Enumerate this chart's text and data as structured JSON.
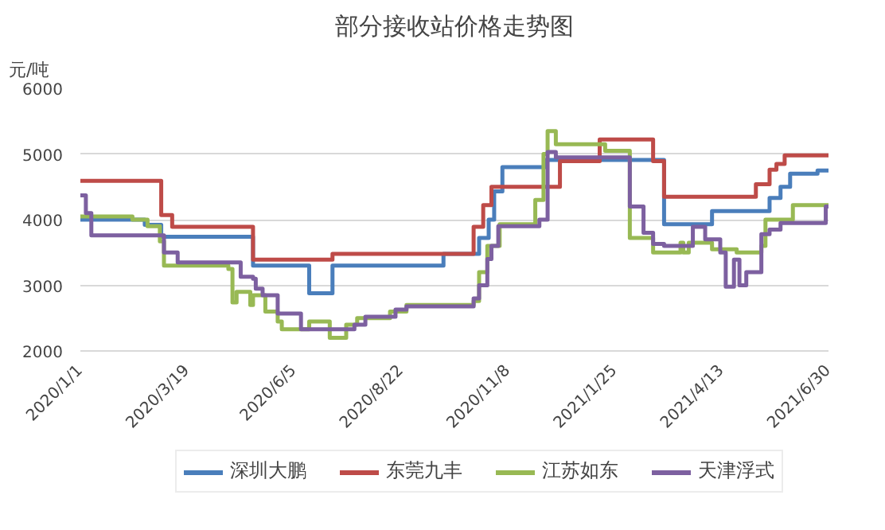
{
  "chart_data": {
    "type": "step",
    "title": "部分接收站价格走势图",
    "ylabel": "元/吨",
    "xlim": [
      "2020-01-01",
      "2021-06-30"
    ],
    "xticks": [
      {
        "value": "2020-01-01",
        "label": "2020/1/1"
      },
      {
        "value": "2020-03-19",
        "label": "2020/3/19"
      },
      {
        "value": "2020-06-05",
        "label": "2020/6/5"
      },
      {
        "value": "2020-08-22",
        "label": "2020/8/22"
      },
      {
        "value": "2020-11-08",
        "label": "2020/11/8"
      },
      {
        "value": "2021-01-25",
        "label": "2021/1/25"
      },
      {
        "value": "2021-04-13",
        "label": "2021/4/13"
      },
      {
        "value": "2021-06-30",
        "label": "2021/6/30"
      }
    ],
    "ylim": [
      2000,
      6000
    ],
    "yticks": [
      2000,
      3000,
      4000,
      5000,
      6000
    ],
    "grid": "y",
    "legend": "bottom",
    "line_style": "solid",
    "marker": "none",
    "series": [
      {
        "name": "深圳大鹏",
        "color": "#4a7ebb",
        "x": [
          "2020-01-01",
          "2020-02-17",
          "2020-02-29",
          "2020-05-06",
          "2020-06-16",
          "2020-07-03",
          "2020-09-22",
          "2020-10-18",
          "2020-10-25",
          "2020-10-29",
          "2020-11-04",
          "2020-12-06",
          "2021-03-02",
          "2021-04-06",
          "2021-05-18",
          "2021-05-26",
          "2021-06-02",
          "2021-06-22",
          "2021-06-30"
        ],
        "values": [
          4000,
          3920,
          3740,
          3300,
          2880,
          3300,
          3480,
          3720,
          4000,
          4430,
          4800,
          4910,
          3930,
          4130,
          4330,
          4500,
          4700,
          4750,
          4730
        ]
      },
      {
        "name": "东莞九丰",
        "color": "#be4b48",
        "x": [
          "2020-01-01",
          "2020-02-29",
          "2020-03-08",
          "2020-05-06",
          "2020-07-03",
          "2020-10-14",
          "2020-10-21",
          "2020-10-27",
          "2020-12-16",
          "2021-01-14",
          "2021-02-22",
          "2021-03-02",
          "2021-05-08",
          "2021-05-18",
          "2021-05-23",
          "2021-05-29",
          "2021-06-30"
        ],
        "values": [
          4590,
          4070,
          3890,
          3390,
          3480,
          3890,
          4220,
          4500,
          4890,
          5220,
          4890,
          4350,
          4540,
          4760,
          4850,
          4980,
          4980
        ]
      },
      {
        "name": "江苏如东",
        "color": "#98b954",
        "x": [
          "2020-01-01",
          "2020-02-08",
          "2020-02-19",
          "2020-02-28",
          "2020-03-02",
          "2020-04-18",
          "2020-04-21",
          "2020-04-24",
          "2020-05-04",
          "2020-05-06",
          "2020-05-15",
          "2020-05-24",
          "2020-05-27",
          "2020-06-16",
          "2020-07-01",
          "2020-07-13",
          "2020-07-21",
          "2020-08-14",
          "2020-08-26",
          "2020-10-14",
          "2020-10-18",
          "2020-10-24",
          "2020-11-02",
          "2020-11-28",
          "2020-12-04",
          "2020-12-07",
          "2020-12-13",
          "2021-01-18",
          "2021-02-05",
          "2021-02-22",
          "2021-03-14",
          "2021-03-16",
          "2021-03-20",
          "2021-04-06",
          "2021-04-24",
          "2021-05-12",
          "2021-05-15",
          "2021-06-04",
          "2021-06-30"
        ],
        "values": [
          4050,
          4000,
          3900,
          3670,
          3300,
          3250,
          2740,
          2900,
          2700,
          2850,
          2600,
          2450,
          2330,
          2450,
          2200,
          2400,
          2500,
          2600,
          2700,
          2760,
          3200,
          3600,
          3930,
          4300,
          5000,
          5350,
          5150,
          5050,
          3720,
          3500,
          3650,
          3500,
          3650,
          3550,
          3500,
          3600,
          4000,
          4220,
          4220
        ]
      },
      {
        "name": "天津浮式",
        "color": "#7d60a0",
        "x": [
          "2020-01-01",
          "2020-01-05",
          "2020-01-09",
          "2020-03-02",
          "2020-03-12",
          "2020-04-27",
          "2020-05-06",
          "2020-05-08",
          "2020-05-13",
          "2020-05-24",
          "2020-06-10",
          "2020-07-19",
          "2020-07-27",
          "2020-08-18",
          "2020-08-26",
          "2020-10-14",
          "2020-10-18",
          "2020-10-24",
          "2020-10-27",
          "2020-11-01",
          "2020-12-01",
          "2020-12-07",
          "2020-12-13",
          "2021-02-05",
          "2021-02-15",
          "2021-02-22",
          "2021-03-02",
          "2021-03-23",
          "2021-04-01",
          "2021-04-12",
          "2021-04-16",
          "2021-04-22",
          "2021-04-26",
          "2021-05-01",
          "2021-05-12",
          "2021-05-18",
          "2021-05-26",
          "2021-06-28",
          "2021-06-30"
        ],
        "values": [
          4370,
          4100,
          3760,
          3500,
          3350,
          3130,
          3100,
          2950,
          2850,
          2570,
          2330,
          2400,
          2520,
          2630,
          2680,
          2800,
          3000,
          3400,
          3600,
          3900,
          4000,
          5030,
          4950,
          4200,
          3800,
          3630,
          3600,
          3890,
          3700,
          3500,
          2980,
          3390,
          3000,
          3200,
          3780,
          3850,
          3950,
          4200,
          4200
        ]
      }
    ]
  }
}
